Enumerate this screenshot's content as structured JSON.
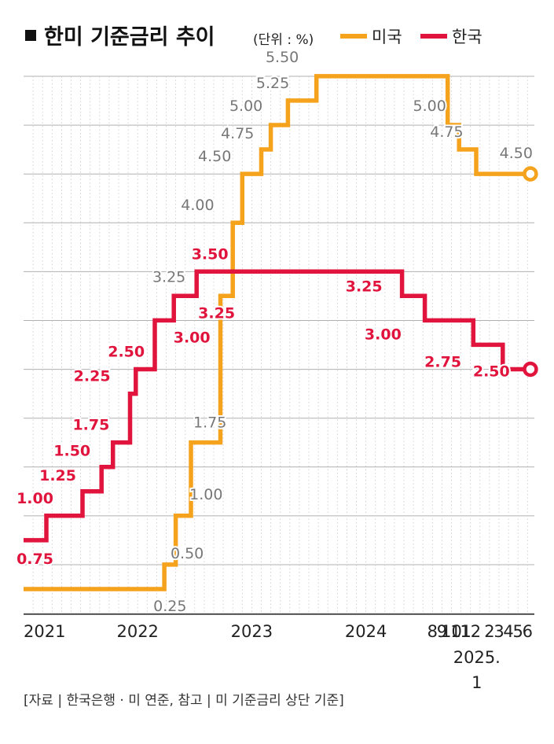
{
  "chart_data": {
    "type": "line",
    "title": "한미 기준금리 추이",
    "unit": "(단위 : %)",
    "source": "[자료 | 한국은행 · 미 연준, 참고 | 미 기준금리 상단 기준]",
    "ylim": [
      0,
      6
    ],
    "grid": true,
    "legend": "top-right",
    "x_ticks": [
      {
        "label": "2021",
        "month": 0
      },
      {
        "label": "2022",
        "month": 12
      },
      {
        "label": "2023",
        "month": 24
      },
      {
        "label": "2024",
        "month": 36
      },
      {
        "label": "8",
        "month": 43
      },
      {
        "label": "9",
        "month": 44
      },
      {
        "label": "10",
        "month": 45
      },
      {
        "label": "11",
        "month": 46
      },
      {
        "label": "12",
        "month": 47
      },
      {
        "label": "2",
        "month": 49
      },
      {
        "label": "3",
        "month": 50
      },
      {
        "label": "4",
        "month": 51
      },
      {
        "label": "5",
        "month": 52
      },
      {
        "label": "6",
        "month": 53
      }
    ],
    "x_extra_label": {
      "line1": "2025.",
      "line2": "1"
    },
    "series": [
      {
        "name": "미국",
        "color": "#f5a21c",
        "steps": [
          {
            "month": 0,
            "value": 0.25
          },
          {
            "month": 14.8,
            "value": 0.5
          },
          {
            "month": 16,
            "value": 1.0
          },
          {
            "month": 17.6,
            "value": 1.75
          },
          {
            "month": 20.7,
            "value": 3.25
          },
          {
            "month": 22,
            "value": 4.0
          },
          {
            "month": 23,
            "value": 4.5
          },
          {
            "month": 25,
            "value": 4.75
          },
          {
            "month": 26,
            "value": 5.0
          },
          {
            "month": 27.8,
            "value": 5.25
          },
          {
            "month": 30.8,
            "value": 5.5
          },
          {
            "month": 44.6,
            "value": 5.0
          },
          {
            "month": 45.8,
            "value": 4.75
          },
          {
            "month": 47.6,
            "value": 4.5
          },
          {
            "month": 53.3,
            "value": 4.5
          }
        ],
        "labels": [
          {
            "text": "0.25",
            "month": 15.4,
            "value": 0.25
          },
          {
            "text": "0.50",
            "month": 17.2,
            "value": 0.5
          },
          {
            "text": "1.00",
            "month": 19.2,
            "value": 1.0
          },
          {
            "text": "1.75",
            "month": 19.6,
            "value": 1.75
          },
          {
            "text": "3.25",
            "month": 15.3,
            "value": 3.25
          },
          {
            "text": "4.00",
            "month": 18.3,
            "value": 4.0
          },
          {
            "text": "4.50",
            "month": 20.1,
            "value": 4.5
          },
          {
            "text": "4.75",
            "month": 22.5,
            "value": 4.75
          },
          {
            "text": "5.00",
            "month": 23.4,
            "value": 5.0
          },
          {
            "text": "5.25",
            "month": 26.2,
            "value": 5.25
          },
          {
            "text": "5.50",
            "month": 27.2,
            "value": 5.5
          },
          {
            "text": "5.00",
            "month": 42.7,
            "value": 5.0
          },
          {
            "text": "4.75",
            "month": 44.5,
            "value": 4.75
          },
          {
            "text": "4.50",
            "month": 51.8,
            "value": 4.5
          }
        ]
      },
      {
        "name": "한국",
        "color": "#e0143c",
        "steps": [
          {
            "month": 0,
            "value": 0.75
          },
          {
            "month": 2.4,
            "value": 1.0
          },
          {
            "month": 6.2,
            "value": 1.25
          },
          {
            "month": 8.2,
            "value": 1.5
          },
          {
            "month": 9.4,
            "value": 1.75
          },
          {
            "month": 11.2,
            "value": 2.25
          },
          {
            "month": 11.8,
            "value": 2.5
          },
          {
            "month": 13.8,
            "value": 3.0
          },
          {
            "month": 15.8,
            "value": 3.25
          },
          {
            "month": 18.2,
            "value": 3.5
          },
          {
            "month": 39.8,
            "value": 3.25
          },
          {
            "month": 42.2,
            "value": 3.0
          },
          {
            "month": 47.3,
            "value": 2.75
          },
          {
            "month": 50.4,
            "value": 2.5
          },
          {
            "month": 53.3,
            "value": 2.5
          }
        ],
        "labels": [
          {
            "text": "0.75",
            "month": 1.2,
            "value": 0.75
          },
          {
            "text": "1.00",
            "month": 1.2,
            "value": 1.0
          },
          {
            "text": "1.25",
            "month": 3.6,
            "value": 1.25
          },
          {
            "text": "1.50",
            "month": 5.1,
            "value": 1.5
          },
          {
            "text": "1.75",
            "month": 7.1,
            "value": 1.75
          },
          {
            "text": "2.25",
            "month": 7.2,
            "value": 2.25
          },
          {
            "text": "2.50",
            "month": 10.8,
            "value": 2.5
          },
          {
            "text": "3.00",
            "month": 17.7,
            "value": 3.0
          },
          {
            "text": "3.25",
            "month": 20.3,
            "value": 3.25
          },
          {
            "text": "3.50",
            "month": 19.6,
            "value": 3.5
          },
          {
            "text": "3.25",
            "month": 35.8,
            "value": 3.25
          },
          {
            "text": "3.00",
            "month": 37.8,
            "value": 3.0
          },
          {
            "text": "2.75",
            "month": 44.1,
            "value": 2.75
          },
          {
            "text": "2.50",
            "month": 49.2,
            "value": 2.5
          }
        ]
      }
    ]
  }
}
